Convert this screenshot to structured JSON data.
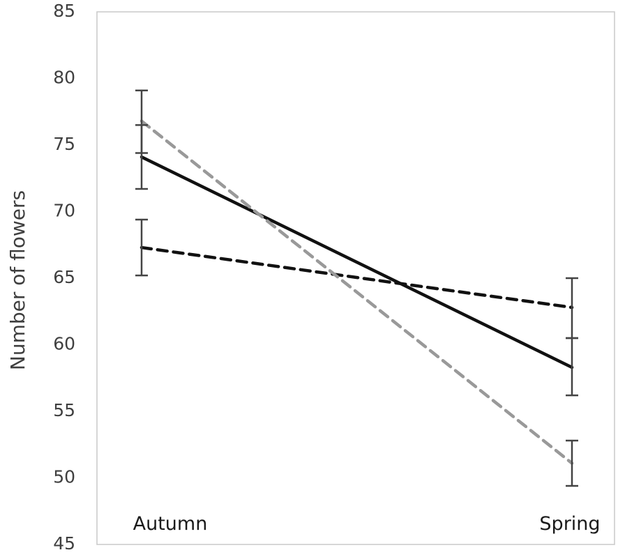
{
  "chart_data": {
    "type": "line",
    "title": "",
    "xlabel": "",
    "ylabel": "Number of flowers",
    "categories": [
      "Autumn",
      "Spring"
    ],
    "ylim": [
      45,
      85
    ],
    "yticks": [
      45,
      50,
      55,
      60,
      65,
      70,
      75,
      80,
      85
    ],
    "grid": false,
    "legend": "none",
    "series": [
      {
        "color": "#111111",
        "style": "solid",
        "values": [
          74.1,
          58.3
        ],
        "error_low": [
          71.7,
          56.2
        ],
        "error_high": [
          76.5,
          60.5
        ]
      },
      {
        "color": "#111111",
        "style": "dashed",
        "values": [
          67.3,
          62.8
        ],
        "error_low": [
          65.2,
          60.5
        ],
        "error_high": [
          69.4,
          65.0
        ]
      },
      {
        "color": "#999999",
        "style": "dashed",
        "values": [
          76.8,
          51.1
        ],
        "error_low": [
          74.4,
          49.4
        ],
        "error_high": [
          79.1,
          52.8
        ]
      }
    ]
  }
}
